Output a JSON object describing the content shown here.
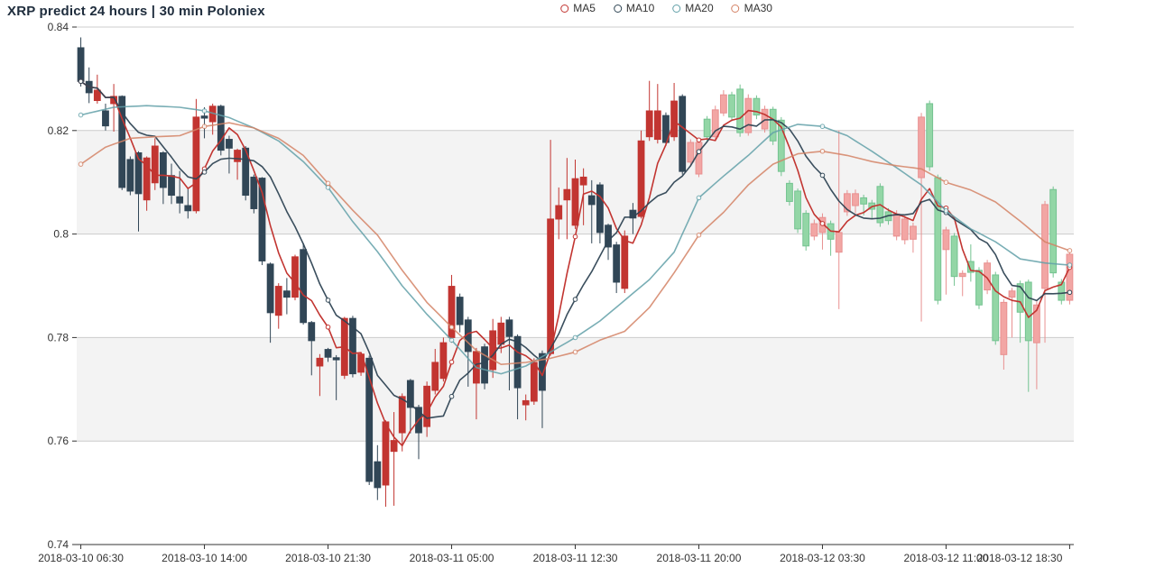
{
  "title": "XRP predict 24 hours | 30 min Poloniex",
  "legend": [
    {
      "label": "MA5",
      "color": "#c23531"
    },
    {
      "label": "MA10",
      "color": "#2f4554"
    },
    {
      "label": "MA20",
      "color": "#61a0a8"
    },
    {
      "label": "MA30",
      "color": "#d48265"
    }
  ],
  "chart_data": {
    "type": "candlestick",
    "title": "XRP predict 24 hours | 30 min Poloniex",
    "x_start": "2018-03-10 06:30",
    "interval_minutes": 30,
    "x_tick_every": 15,
    "x_tick_labels": [
      "2018-03-10 06:30",
      "2018-03-10 14:00",
      "2018-03-10 21:30",
      "2018-03-11 05:00",
      "2018-03-11 12:30",
      "2018-03-11 20:00",
      "2018-03-12 03:30",
      "2018-03-12 11:00",
      "2018-03-12 18:30"
    ],
    "ylim": [
      0.74,
      0.84
    ],
    "y_ticks": [
      0.74,
      0.76,
      0.78,
      0.8,
      0.82,
      0.84
    ],
    "grid": {
      "split_lines": true,
      "alternating_bands": true
    },
    "legend_position": "top-center",
    "predicted_from_index": 74,
    "colors": {
      "real_up": "#c23531",
      "real_down": "#314656",
      "pred_up_fill": "#f2a6a4",
      "pred_up_border": "#e89090",
      "pred_down_fill": "#93d6a6",
      "pred_down_border": "#74c391",
      "split_line": "#cccccc",
      "split_area": "rgba(200,200,200,0.22)",
      "axis": "#333333",
      "axis_label": "#333333"
    },
    "candles_format": [
      "open",
      "close",
      "low",
      "high"
    ],
    "candles": [
      [
        0.836,
        0.8295,
        0.8285,
        0.838
      ],
      [
        0.8295,
        0.8273,
        0.8253,
        0.8322
      ],
      [
        0.8258,
        0.8278,
        0.8252,
        0.8308
      ],
      [
        0.8238,
        0.8209,
        0.82,
        0.8252
      ],
      [
        0.8252,
        0.8266,
        0.8198,
        0.829
      ],
      [
        0.8266,
        0.809,
        0.8085,
        0.8268
      ],
      [
        0.8144,
        0.8083,
        0.8075,
        0.815
      ],
      [
        0.8157,
        0.8078,
        0.8005,
        0.816
      ],
      [
        0.8066,
        0.8147,
        0.8045,
        0.815
      ],
      [
        0.8099,
        0.817,
        0.8085,
        0.8185
      ],
      [
        0.8157,
        0.809,
        0.8058,
        0.816
      ],
      [
        0.8113,
        0.8075,
        0.8058,
        0.8136
      ],
      [
        0.8072,
        0.806,
        0.804,
        0.8122
      ],
      [
        0.8055,
        0.8045,
        0.803,
        0.809
      ],
      [
        0.8045,
        0.8226,
        0.804,
        0.8261
      ],
      [
        0.8228,
        0.8224,
        0.8185,
        0.8245
      ],
      [
        0.8217,
        0.8247,
        0.8192,
        0.8252
      ],
      [
        0.8247,
        0.8162,
        0.8152,
        0.825
      ],
      [
        0.8183,
        0.8166,
        0.8117,
        0.819
      ],
      [
        0.814,
        0.8162,
        0.8105,
        0.8165
      ],
      [
        0.8166,
        0.8075,
        0.8065,
        0.817
      ],
      [
        0.811,
        0.8049,
        0.804,
        0.8115
      ],
      [
        0.8108,
        0.7948,
        0.794,
        0.811
      ],
      [
        0.7942,
        0.7848,
        0.779,
        0.7945
      ],
      [
        0.7843,
        0.7899,
        0.7817,
        0.7905
      ],
      [
        0.789,
        0.7878,
        0.7845,
        0.7915
      ],
      [
        0.7878,
        0.7956,
        0.7872,
        0.796
      ],
      [
        0.797,
        0.7829,
        0.7825,
        0.7982
      ],
      [
        0.7829,
        0.7794,
        0.7727,
        0.7832
      ],
      [
        0.7745,
        0.776,
        0.7687,
        0.7768
      ],
      [
        0.7777,
        0.7762,
        0.7753,
        0.778
      ],
      [
        0.7761,
        0.7757,
        0.7679,
        0.7766
      ],
      [
        0.7727,
        0.7837,
        0.772,
        0.784
      ],
      [
        0.7837,
        0.773,
        0.7723,
        0.7842
      ],
      [
        0.7733,
        0.7768,
        0.7726,
        0.7772
      ],
      [
        0.776,
        0.7522,
        0.7515,
        0.7765
      ],
      [
        0.756,
        0.751,
        0.7486,
        0.7592
      ],
      [
        0.7515,
        0.7637,
        0.7473,
        0.764
      ],
      [
        0.758,
        0.7601,
        0.7475,
        0.7656
      ],
      [
        0.7616,
        0.7686,
        0.758,
        0.7692
      ],
      [
        0.7717,
        0.7665,
        0.7615,
        0.772
      ],
      [
        0.7665,
        0.7616,
        0.7565,
        0.767
      ],
      [
        0.7628,
        0.7706,
        0.7608,
        0.7715
      ],
      [
        0.7698,
        0.7752,
        0.769,
        0.7778
      ],
      [
        0.7721,
        0.779,
        0.7715,
        0.78
      ],
      [
        0.78,
        0.7899,
        0.779,
        0.7921
      ],
      [
        0.7878,
        0.7825,
        0.781,
        0.7885
      ],
      [
        0.7834,
        0.7773,
        0.7705,
        0.784
      ],
      [
        0.7712,
        0.7773,
        0.7642,
        0.778
      ],
      [
        0.7782,
        0.7712,
        0.77,
        0.7788
      ],
      [
        0.7738,
        0.7813,
        0.7722,
        0.7836
      ],
      [
        0.7787,
        0.7828,
        0.777,
        0.784
      ],
      [
        0.7834,
        0.7802,
        0.7698,
        0.784
      ],
      [
        0.7802,
        0.7703,
        0.7642,
        0.7806
      ],
      [
        0.767,
        0.7678,
        0.764,
        0.769
      ],
      [
        0.7677,
        0.7752,
        0.767,
        0.776
      ],
      [
        0.7769,
        0.7698,
        0.7625,
        0.7775
      ],
      [
        0.7769,
        0.8029,
        0.7765,
        0.8182
      ],
      [
        0.8029,
        0.8055,
        0.799,
        0.809
      ],
      [
        0.8066,
        0.8086,
        0.799,
        0.8147
      ],
      [
        0.8017,
        0.8107,
        0.801,
        0.8144
      ],
      [
        0.8095,
        0.811,
        0.8017,
        0.8127
      ],
      [
        0.8074,
        0.8057,
        0.7982,
        0.8104
      ],
      [
        0.8095,
        0.8003,
        0.7982,
        0.81
      ],
      [
        0.8017,
        0.7975,
        0.795,
        0.802
      ],
      [
        0.7979,
        0.7907,
        0.7886,
        0.7985
      ],
      [
        0.7895,
        0.7996,
        0.7886,
        0.8007
      ],
      [
        0.8046,
        0.8031,
        0.8,
        0.806
      ],
      [
        0.8034,
        0.818,
        0.803,
        0.82
      ],
      [
        0.8188,
        0.8238,
        0.818,
        0.8296
      ],
      [
        0.8183,
        0.8238,
        0.8175,
        0.829
      ],
      [
        0.8229,
        0.8177,
        0.817,
        0.8235
      ],
      [
        0.8188,
        0.8257,
        0.818,
        0.8292
      ],
      [
        0.8266,
        0.8121,
        0.8115,
        0.827
      ],
      [
        0.8139,
        0.8177,
        0.8131,
        0.8183
      ],
      [
        0.8116,
        0.8177,
        0.811,
        0.8184
      ],
      [
        0.8222,
        0.8188,
        0.818,
        0.8228
      ],
      [
        0.8188,
        0.824,
        0.8182,
        0.8248
      ],
      [
        0.8234,
        0.8269,
        0.8228,
        0.8278
      ],
      [
        0.8269,
        0.8226,
        0.8218,
        0.8275
      ],
      [
        0.828,
        0.8196,
        0.8188,
        0.8289
      ],
      [
        0.8196,
        0.8262,
        0.819,
        0.827
      ],
      [
        0.8262,
        0.823,
        0.8222,
        0.8268
      ],
      [
        0.8203,
        0.8241,
        0.8196,
        0.8248
      ],
      [
        0.8241,
        0.818,
        0.8172,
        0.8246
      ],
      [
        0.822,
        0.8121,
        0.8112,
        0.8226
      ],
      [
        0.8098,
        0.8063,
        0.8055,
        0.8104
      ],
      [
        0.8083,
        0.801,
        0.8002,
        0.8088
      ],
      [
        0.804,
        0.7977,
        0.7968,
        0.8046
      ],
      [
        0.7996,
        0.802,
        0.7988,
        0.8028
      ],
      [
        0.8003,
        0.8032,
        0.797,
        0.804
      ],
      [
        0.802,
        0.799,
        0.7958,
        0.8026
      ],
      [
        0.7965,
        0.8003,
        0.7855,
        0.82
      ],
      [
        0.8043,
        0.8078,
        0.8035,
        0.8085
      ],
      [
        0.8055,
        0.8078,
        0.804,
        0.8086
      ],
      [
        0.807,
        0.8058,
        0.8036,
        0.8076
      ],
      [
        0.806,
        0.8048,
        0.803,
        0.8066
      ],
      [
        0.8092,
        0.8022,
        0.8014,
        0.8098
      ],
      [
        0.8043,
        0.8026,
        0.8018,
        0.805
      ],
      [
        0.7996,
        0.8039,
        0.7988,
        0.8046
      ],
      [
        0.7989,
        0.8029,
        0.798,
        0.8036
      ],
      [
        0.799,
        0.8015,
        0.7964,
        0.8022
      ],
      [
        0.8109,
        0.8226,
        0.7831,
        0.8234
      ],
      [
        0.8252,
        0.813,
        0.8122,
        0.8258
      ],
      [
        0.8109,
        0.7872,
        0.7864,
        0.8115
      ],
      [
        0.797,
        0.8008,
        0.7883,
        0.8014
      ],
      [
        0.7996,
        0.7918,
        0.79,
        0.8002
      ],
      [
        0.7918,
        0.7924,
        0.788,
        0.793
      ],
      [
        0.7947,
        0.7926,
        0.7908,
        0.798
      ],
      [
        0.793,
        0.7863,
        0.7855,
        0.7936
      ],
      [
        0.7892,
        0.7944,
        0.7884,
        0.795
      ],
      [
        0.7921,
        0.7794,
        0.7786,
        0.7927
      ],
      [
        0.7767,
        0.7868,
        0.7738,
        0.7874
      ],
      [
        0.7878,
        0.789,
        0.78,
        0.7896
      ],
      [
        0.7904,
        0.7849,
        0.779,
        0.791
      ],
      [
        0.7907,
        0.7794,
        0.7695,
        0.7912
      ],
      [
        0.779,
        0.7863,
        0.77,
        0.787
      ],
      [
        0.7895,
        0.8057,
        0.779,
        0.8064
      ],
      [
        0.8086,
        0.7925,
        0.7916,
        0.8092
      ],
      [
        0.7907,
        0.7872,
        0.7864,
        0.7913
      ],
      [
        0.7872,
        0.7961,
        0.7864,
        0.7968
      ]
    ],
    "moving_averages": [
      {
        "name": "MA5",
        "color": "#c23531",
        "window": 5,
        "source": "computed_from_closes",
        "width": 1.6,
        "opacity": 1
      },
      {
        "name": "MA10",
        "color": "#2f4554",
        "window": 10,
        "source": "computed_from_closes",
        "width": 1.6,
        "opacity": 0.95
      },
      {
        "name": "MA20",
        "color": "#61a0a8",
        "window": 20,
        "source": "traced_points",
        "width": 1.6,
        "opacity": 0.85,
        "points": [
          [
            0,
            0.823
          ],
          [
            4,
            0.8245
          ],
          [
            8,
            0.8248
          ],
          [
            12,
            0.8245
          ],
          [
            15,
            0.8238
          ],
          [
            18,
            0.8225
          ],
          [
            21,
            0.8205
          ],
          [
            24,
            0.818
          ],
          [
            27,
            0.814
          ],
          [
            30,
            0.809
          ],
          [
            33,
            0.8024
          ],
          [
            36,
            0.7966
          ],
          [
            39,
            0.79
          ],
          [
            42,
            0.7845
          ],
          [
            45,
            0.7795
          ],
          [
            48,
            0.7742
          ],
          [
            51,
            0.773
          ],
          [
            54,
            0.7745
          ],
          [
            57,
            0.7772
          ],
          [
            60,
            0.78
          ],
          [
            63,
            0.7832
          ],
          [
            66,
            0.7872
          ],
          [
            69,
            0.7912
          ],
          [
            72,
            0.7965
          ],
          [
            75,
            0.807
          ],
          [
            78,
            0.8112
          ],
          [
            81,
            0.8152
          ],
          [
            84,
            0.8196
          ],
          [
            87,
            0.8212
          ],
          [
            90,
            0.8208
          ],
          [
            93,
            0.819
          ],
          [
            96,
            0.816
          ],
          [
            99,
            0.8128
          ],
          [
            102,
            0.8095
          ],
          [
            105,
            0.8045
          ],
          [
            108,
            0.801
          ],
          [
            111,
            0.7985
          ],
          [
            114,
            0.7952
          ],
          [
            117,
            0.7944
          ],
          [
            120,
            0.794
          ]
        ]
      },
      {
        "name": "MA30",
        "color": "#d48265",
        "window": 30,
        "source": "traced_points",
        "width": 1.6,
        "opacity": 0.85,
        "points": [
          [
            0,
            0.8135
          ],
          [
            3,
            0.8168
          ],
          [
            6,
            0.8185
          ],
          [
            9,
            0.8188
          ],
          [
            12,
            0.819
          ],
          [
            15,
            0.8208
          ],
          [
            18,
            0.8215
          ],
          [
            21,
            0.8205
          ],
          [
            24,
            0.8185
          ],
          [
            27,
            0.8152
          ],
          [
            30,
            0.8098
          ],
          [
            33,
            0.8046
          ],
          [
            36,
            0.7998
          ],
          [
            39,
            0.793
          ],
          [
            42,
            0.7868
          ],
          [
            45,
            0.782
          ],
          [
            48,
            0.7775
          ],
          [
            51,
            0.7748
          ],
          [
            54,
            0.7752
          ],
          [
            57,
            0.776
          ],
          [
            60,
            0.7772
          ],
          [
            63,
            0.7795
          ],
          [
            66,
            0.7812
          ],
          [
            69,
            0.7858
          ],
          [
            72,
            0.7925
          ],
          [
            75,
            0.7998
          ],
          [
            78,
            0.8042
          ],
          [
            81,
            0.8095
          ],
          [
            84,
            0.8135
          ],
          [
            87,
            0.8155
          ],
          [
            90,
            0.816
          ],
          [
            93,
            0.8152
          ],
          [
            96,
            0.814
          ],
          [
            99,
            0.8132
          ],
          [
            102,
            0.8126
          ],
          [
            105,
            0.81
          ],
          [
            108,
            0.8085
          ],
          [
            111,
            0.8062
          ],
          [
            114,
            0.8025
          ],
          [
            117,
            0.7985
          ],
          [
            120,
            0.7968
          ]
        ]
      }
    ],
    "symbol_marker_every": 15
  }
}
